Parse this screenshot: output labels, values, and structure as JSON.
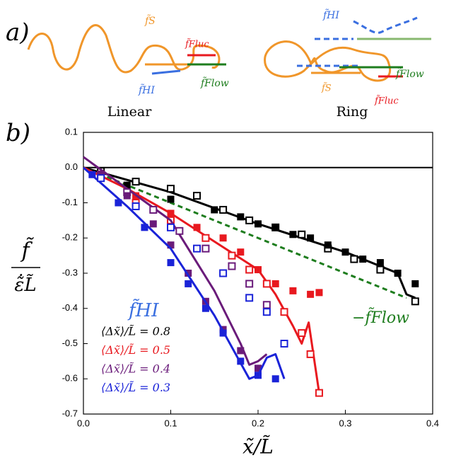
{
  "schematic": {
    "panel_label": "a)",
    "linear_caption": "Linear",
    "ring_caption": "Ring",
    "linear_labels": {
      "fs": "f̃S",
      "fluc": "f̃Fluc",
      "hi": "f̃HI",
      "flow": "f̃Flow"
    },
    "ring_labels": {
      "hi": "f̃HI",
      "flow": "f̃Flow",
      "fs": "f̃S",
      "fluc": "f̃Fluc"
    }
  },
  "chart_data": {
    "type": "scatter",
    "panel_label": "b)",
    "xlabel": "x̃/L̃",
    "ylabel_numerator": "f̃",
    "ylabel_denominator": "ε̃̇L̃",
    "xlim": [
      0,
      0.4
    ],
    "ylim": [
      -0.7,
      0.1
    ],
    "xticks": [
      {
        "value": 0,
        "label": "0.0"
      },
      0.1,
      0.2,
      0.3,
      0.4
    ],
    "yticks": [
      0.1,
      {
        "value": 0,
        "label": "0.0"
      },
      -0.1,
      -0.2,
      -0.3,
      -0.4,
      -0.5,
      -0.6,
      -0.7
    ],
    "reference_line": 0,
    "legend_title": "f̃HI",
    "series": [
      {
        "name": "⟨Δx̃⟩/L̃ = 0.8",
        "color": "#000000",
        "x": [
          0.05,
          0.1,
          0.15,
          0.18,
          0.2,
          0.22,
          0.24,
          0.26,
          0.28,
          0.3,
          0.32,
          0.34,
          0.36,
          0.38
        ],
        "values": [
          -0.05,
          -0.09,
          -0.12,
          -0.14,
          -0.16,
          -0.17,
          -0.19,
          -0.2,
          -0.22,
          -0.24,
          -0.26,
          -0.27,
          -0.3,
          -0.33
        ],
        "open_x": [
          0.02,
          0.06,
          0.1,
          0.13,
          0.16,
          0.19,
          0.22,
          0.25,
          0.28,
          0.31,
          0.34,
          0.38
        ],
        "open_values": [
          -0.01,
          -0.04,
          -0.06,
          -0.08,
          -0.12,
          -0.15,
          -0.17,
          -0.19,
          -0.23,
          -0.26,
          -0.29,
          -0.38
        ],
        "fit_x": [
          0,
          0.1,
          0.2,
          0.3,
          0.36,
          0.37,
          0.38
        ],
        "fit_values": [
          0,
          -0.07,
          -0.16,
          -0.24,
          -0.3,
          -0.36,
          -0.37
        ]
      },
      {
        "name": "⟨Δx̃⟩/L̃ = 0.5",
        "color": "#e8191f",
        "x": [
          0.02,
          0.06,
          0.1,
          0.13,
          0.16,
          0.18,
          0.2,
          0.22,
          0.24,
          0.26,
          0.27
        ],
        "values": [
          -0.02,
          -0.08,
          -0.13,
          -0.17,
          -0.2,
          -0.24,
          -0.29,
          -0.33,
          -0.35,
          -0.36,
          -0.355
        ],
        "open_x": [
          0.02,
          0.06,
          0.1,
          0.14,
          0.17,
          0.19,
          0.21,
          0.23,
          0.25,
          0.26,
          0.27
        ],
        "open_values": [
          -0.02,
          -0.1,
          -0.15,
          -0.2,
          -0.25,
          -0.29,
          -0.33,
          -0.41,
          -0.47,
          -0.53,
          -0.64
        ],
        "fit_x": [
          0,
          0.05,
          0.1,
          0.15,
          0.2,
          0.22,
          0.24,
          0.25,
          0.258,
          0.27
        ],
        "fit_values": [
          0,
          -0.06,
          -0.13,
          -0.21,
          -0.29,
          -0.36,
          -0.45,
          -0.5,
          -0.44,
          -0.64
        ]
      },
      {
        "name": "⟨Δx̃⟩/L̃ = 0.4",
        "color": "#6a1b7a",
        "x": [
          0.02,
          0.05,
          0.08,
          0.1,
          0.12,
          0.14,
          0.16,
          0.18,
          0.2
        ],
        "values": [
          -0.02,
          -0.08,
          -0.16,
          -0.22,
          -0.3,
          -0.38,
          -0.46,
          -0.52,
          -0.57
        ],
        "open_x": [
          0.02,
          0.05,
          0.08,
          0.11,
          0.14,
          0.17,
          0.19,
          0.21
        ],
        "open_values": [
          -0.02,
          -0.07,
          -0.12,
          -0.18,
          -0.23,
          -0.28,
          -0.33,
          -0.39
        ],
        "fit_x": [
          0,
          0.05,
          0.1,
          0.15,
          0.18,
          0.19,
          0.2,
          0.21
        ],
        "fit_values": [
          0.03,
          -0.06,
          -0.15,
          -0.35,
          -0.5,
          -0.56,
          -0.55,
          -0.53
        ]
      },
      {
        "name": "⟨Δx̃⟩/L̃ = 0.3",
        "color": "#1a23d8",
        "x": [
          0.01,
          0.04,
          0.07,
          0.1,
          0.12,
          0.14,
          0.16,
          0.18,
          0.2,
          0.22
        ],
        "values": [
          -0.02,
          -0.1,
          -0.17,
          -0.27,
          -0.33,
          -0.4,
          -0.47,
          -0.55,
          -0.59,
          -0.6
        ],
        "open_x": [
          0.02,
          0.06,
          0.1,
          0.13,
          0.16,
          0.19,
          0.21,
          0.23
        ],
        "open_values": [
          -0.03,
          -0.11,
          -0.17,
          -0.23,
          -0.3,
          -0.37,
          -0.41,
          -0.5
        ],
        "fit_x": [
          0,
          0.05,
          0.1,
          0.15,
          0.19,
          0.2,
          0.21,
          0.22,
          0.23
        ],
        "fit_values": [
          0,
          -0.11,
          -0.23,
          -0.42,
          -0.6,
          -0.59,
          -0.54,
          -0.53,
          -0.6
        ]
      }
    ],
    "flow_line": {
      "name": "−f̃Flow",
      "color": "#1e7d1e",
      "x": [
        0,
        0.37
      ],
      "values": [
        0,
        -0.37
      ]
    }
  }
}
